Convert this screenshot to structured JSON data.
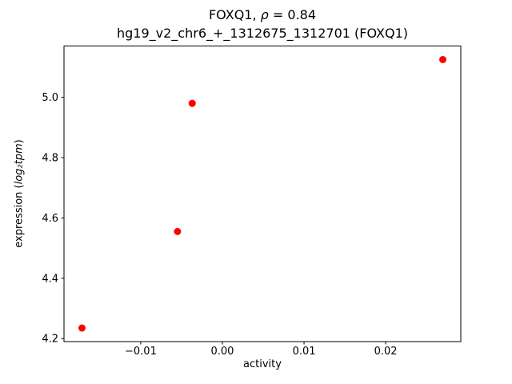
{
  "chart_data": {
    "type": "scatter",
    "title": {
      "line1_prefix": "FOXQ1, ",
      "line1_rho": "ρ",
      "line1_suffix": " = 0.84",
      "line2": "hg19_v2_chr6_+_1312675_1312701 (FOXQ1)"
    },
    "xlabel": "activity",
    "ylabel_parts": {
      "prefix": "expression (",
      "italic": "log₂tpm",
      "suffix": ")"
    },
    "marker_color": "#ff0000",
    "axis_color": "#000000",
    "points": [
      {
        "x": -0.0172,
        "y": 4.235
      },
      {
        "x": -0.0055,
        "y": 4.555
      },
      {
        "x": -0.0037,
        "y": 4.98
      },
      {
        "x": 0.027,
        "y": 5.125
      }
    ],
    "xlim": [
      -0.0194,
      0.0292
    ],
    "ylim": [
      4.19,
      5.17
    ],
    "xticks": [
      {
        "value": -0.01,
        "label": "−0.01"
      },
      {
        "value": 0.0,
        "label": "0.00"
      },
      {
        "value": 0.01,
        "label": "0.01"
      },
      {
        "value": 0.02,
        "label": "0.02"
      }
    ],
    "yticks": [
      {
        "value": 4.2,
        "label": "4.2"
      },
      {
        "value": 4.4,
        "label": "4.4"
      },
      {
        "value": 4.6,
        "label": "4.6"
      },
      {
        "value": 4.8,
        "label": "4.8"
      },
      {
        "value": 5.0,
        "label": "5.0"
      }
    ],
    "legend": "none",
    "grid": false
  }
}
